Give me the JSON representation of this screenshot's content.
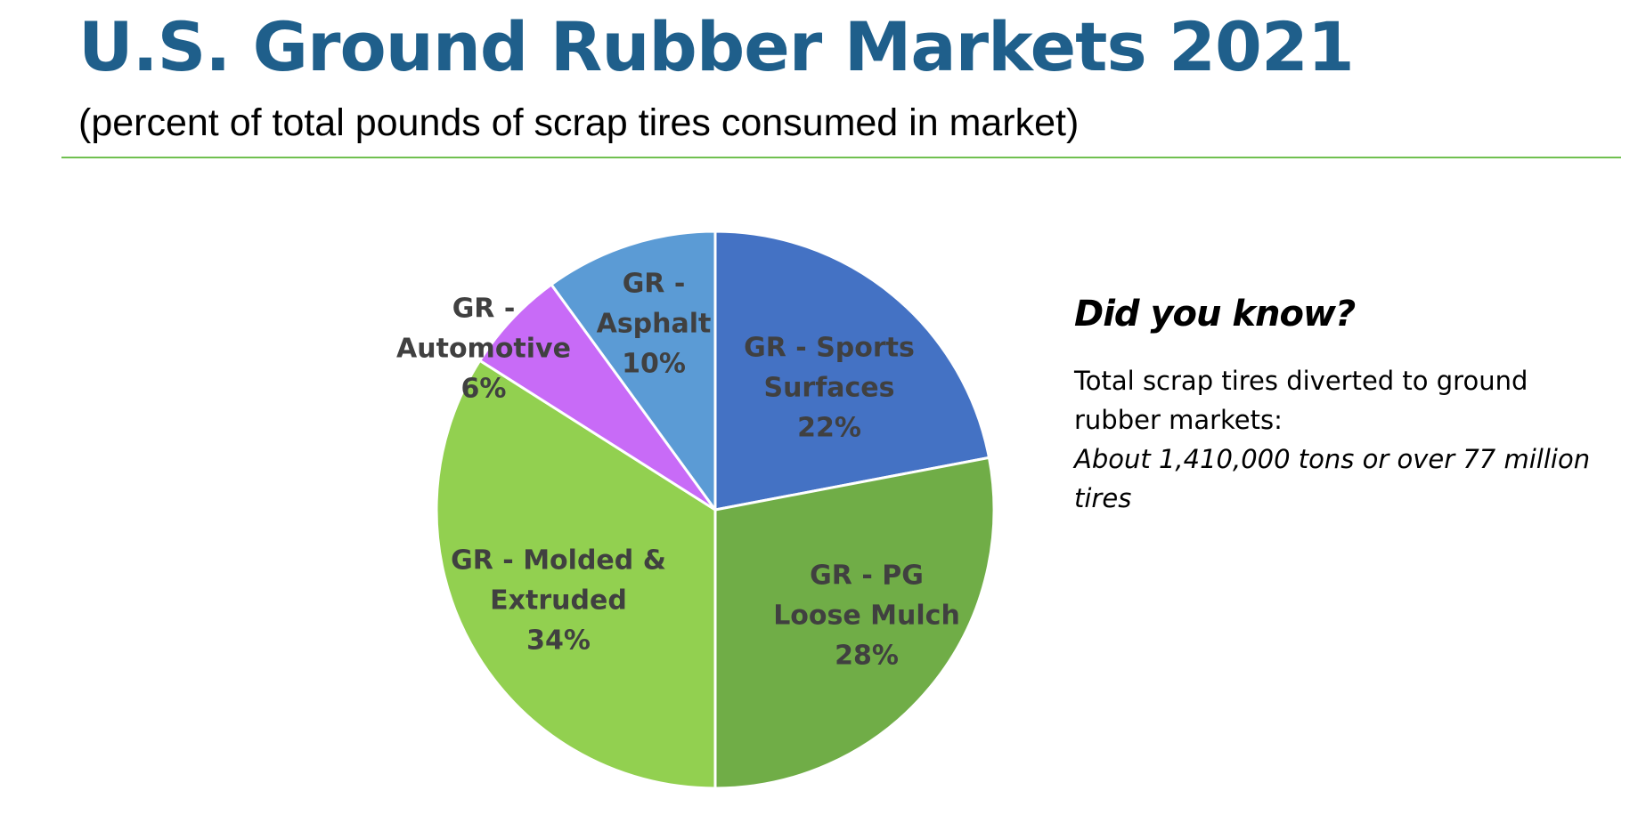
{
  "chart_data": {
    "type": "pie",
    "title": "U.S. Ground Rubber Markets 2021",
    "subtitle": "(percent of total pounds of scrap tires consumed in market)",
    "categories": [
      "GR - Sports Surfaces",
      "GR - PG Loose Mulch",
      "GR - Molded & Extruded",
      "GR - Automotive",
      "GR - Asphalt"
    ],
    "values": [
      22,
      28,
      34,
      6,
      10
    ],
    "value_labels": [
      "22%",
      "28%",
      "34%",
      "6%",
      "10%"
    ],
    "colors": [
      "#4472c4",
      "#70ad47",
      "#92d050",
      "#c86bf7",
      "#5b9bd5"
    ]
  },
  "sidebar": {
    "heading": "Did you know?",
    "text": "Total scrap tires diverted to ground rubber markets:",
    "highlight": "About 1,410,000 tons or over 77 million tires"
  }
}
